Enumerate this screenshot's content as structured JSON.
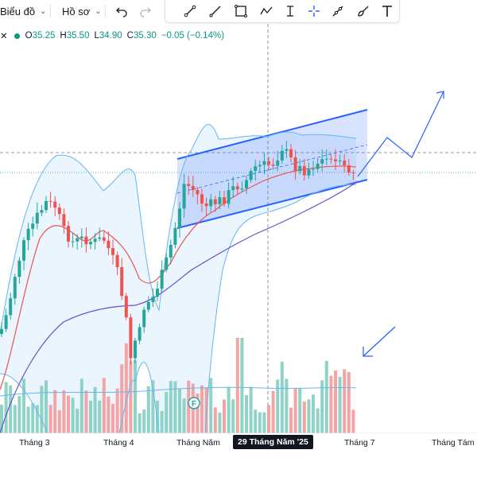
{
  "toolbar": {
    "chart_label": "Biểu đồ",
    "profile_label": "Hồ sơ"
  },
  "legend": {
    "open_label": "O",
    "open": "35.25",
    "high_label": "H",
    "high": "35.50",
    "low_label": "L",
    "low": "34.90",
    "close_label": "C",
    "close": "35.30",
    "change": "−0.05 (−0.14%)"
  },
  "xaxis": {
    "labels": [
      "Tháng 3",
      "Tháng 4",
      "Tháng Năm",
      "Tháng 7",
      "Tháng Tám"
    ],
    "crosshair_label": "29 Tháng Năm '25"
  },
  "marker": {
    "label": "F"
  },
  "colors": {
    "up": "#26a69a",
    "down": "#ef5350",
    "vol_up": "#8fd3c6",
    "vol_down": "#f3a5a5",
    "channel": "#2962ff",
    "bollinger": "#64b5f6",
    "ma_red": "#ef5350",
    "ma_purple": "#6a4fd1"
  },
  "icons": [
    "undo-icon",
    "redo-icon",
    "trend-line-icon",
    "line-icon",
    "rectangle-icon",
    "path-icon",
    "text-cursor-icon",
    "crosshair-icon",
    "pen-icon",
    "brush-icon",
    "text-icon"
  ]
}
